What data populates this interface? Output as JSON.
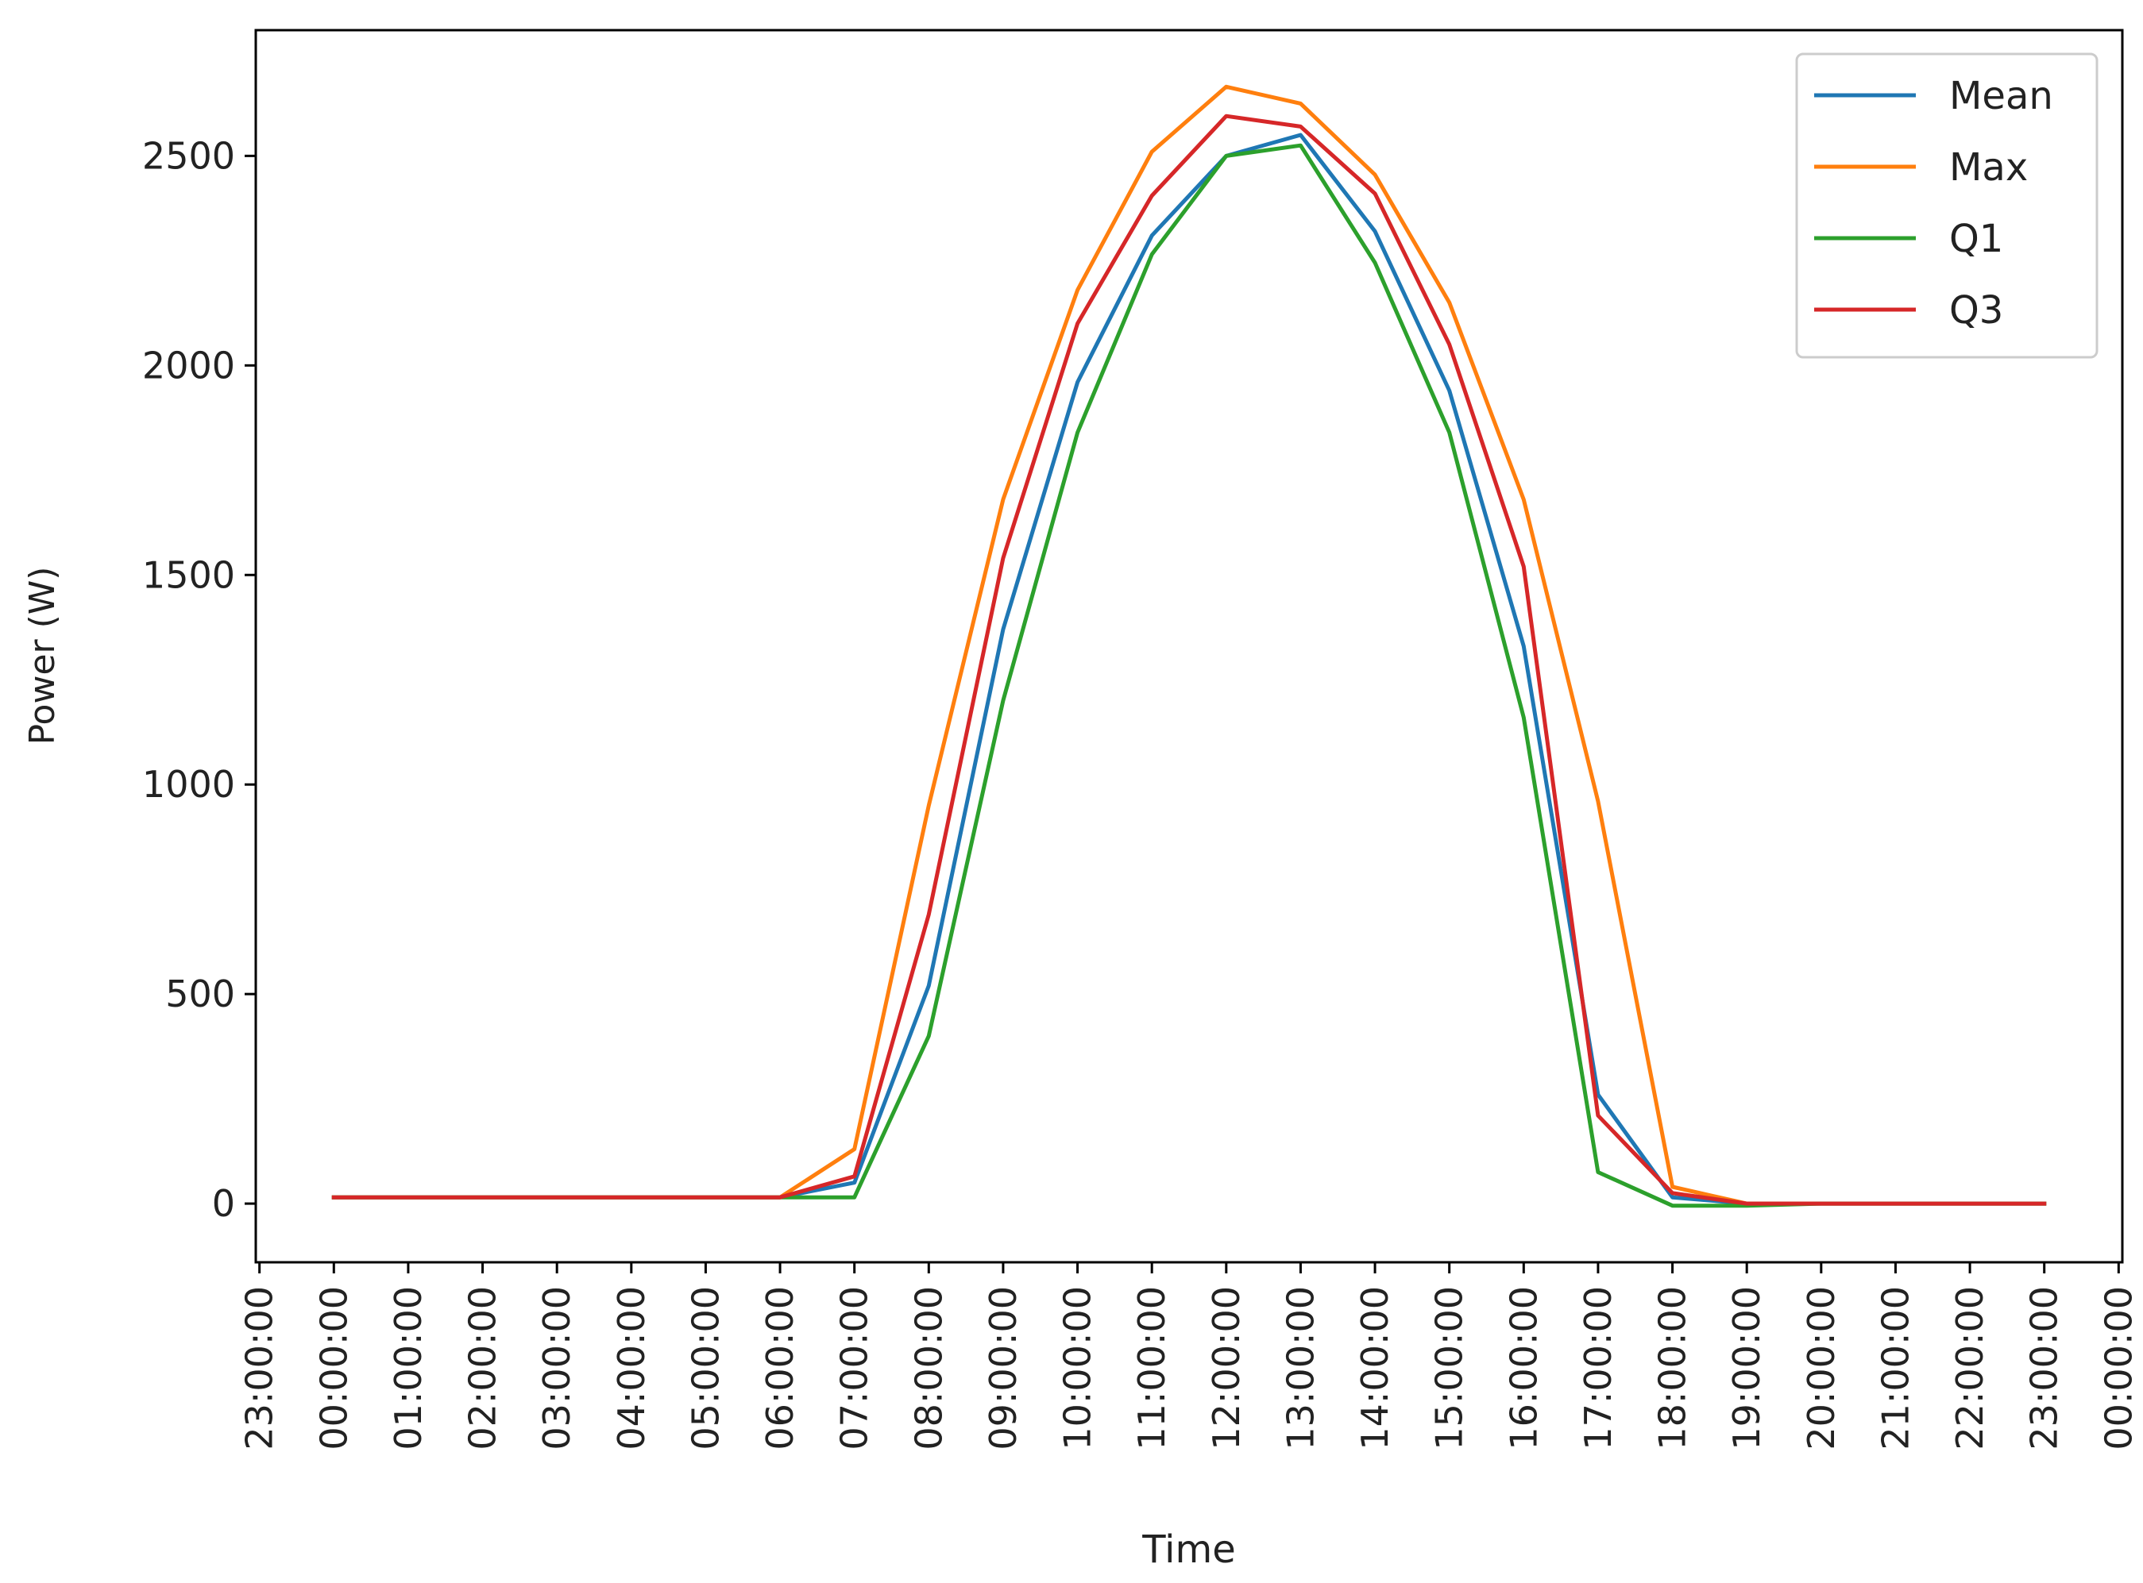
{
  "chart_data": {
    "type": "line",
    "title": "",
    "xlabel": "Time",
    "ylabel": "Power (W)",
    "x_ticks": [
      "23:00:00",
      "00:00:00",
      "01:00:00",
      "02:00:00",
      "03:00:00",
      "04:00:00",
      "05:00:00",
      "06:00:00",
      "07:00:00",
      "08:00:00",
      "09:00:00",
      "10:00:00",
      "11:00:00",
      "12:00:00",
      "13:00:00",
      "14:00:00",
      "15:00:00",
      "16:00:00",
      "17:00:00",
      "18:00:00",
      "19:00:00",
      "20:00:00",
      "21:00:00",
      "22:00:00",
      "23:00:00",
      "00:00:00"
    ],
    "y_ticks": [
      0,
      500,
      1000,
      1500,
      2000,
      2500
    ],
    "xlim": [
      -1.05,
      24.05
    ],
    "ylim": [
      -140,
      2800
    ],
    "x": [
      0,
      1,
      2,
      3,
      4,
      5,
      6,
      7,
      8,
      9,
      10,
      11,
      12,
      13,
      14,
      15,
      16,
      17,
      18,
      19,
      20,
      21,
      22,
      23
    ],
    "grid": false,
    "legend_position": "top-right",
    "series": [
      {
        "name": "Mean",
        "color": "#1f77b4",
        "values": [
          15,
          15,
          15,
          15,
          15,
          15,
          15,
          50,
          520,
          1370,
          1960,
          2310,
          2500,
          2550,
          2320,
          1940,
          1330,
          260,
          15,
          0,
          0,
          0,
          0,
          0
        ]
      },
      {
        "name": "Max",
        "color": "#ff7f0e",
        "values": [
          15,
          15,
          15,
          15,
          15,
          15,
          15,
          130,
          950,
          1680,
          2180,
          2510,
          2665,
          2625,
          2455,
          2150,
          1680,
          960,
          40,
          0,
          0,
          0,
          0,
          0
        ]
      },
      {
        "name": "Q1",
        "color": "#2ca02c",
        "values": [
          15,
          15,
          15,
          15,
          15,
          15,
          15,
          15,
          400,
          1200,
          1840,
          2265,
          2500,
          2525,
          2245,
          1840,
          1160,
          75,
          -5,
          -5,
          0,
          0,
          0,
          0
        ]
      },
      {
        "name": "Q3",
        "color": "#d62728",
        "values": [
          15,
          15,
          15,
          15,
          15,
          15,
          15,
          65,
          690,
          1540,
          2100,
          2405,
          2595,
          2570,
          2410,
          2050,
          1520,
          210,
          25,
          0,
          0,
          0,
          0,
          0
        ]
      }
    ]
  }
}
